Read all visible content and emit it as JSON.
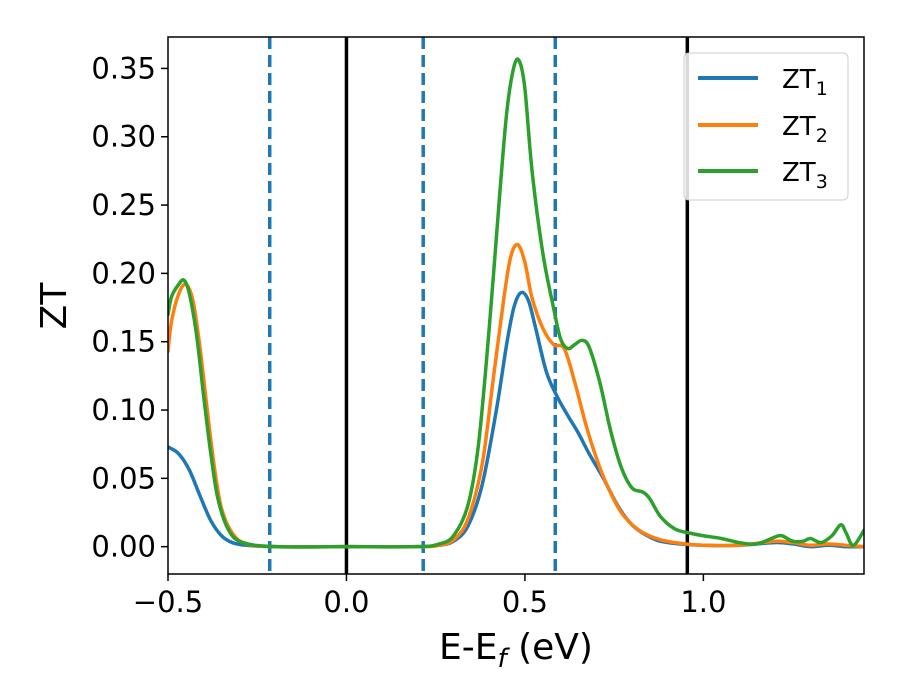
{
  "chart_data": {
    "type": "line",
    "title": "",
    "xlabel": "E-E",
    "xlabel_sub": "f",
    "xlabel_suffix": " (eV)",
    "ylabel": "ZT",
    "xlim": [
      -0.5,
      1.45
    ],
    "ylim": [
      -0.02,
      0.373
    ],
    "xticks": [
      -0.5,
      0.0,
      0.5,
      1.0
    ],
    "xtick_labels": [
      "−0.5",
      "0.0",
      "0.5",
      "1.0"
    ],
    "yticks": [
      0.0,
      0.05,
      0.1,
      0.15,
      0.2,
      0.25,
      0.3,
      0.35
    ],
    "ytick_labels": [
      "0.00",
      "0.05",
      "0.10",
      "0.15",
      "0.20",
      "0.25",
      "0.30",
      "0.35"
    ],
    "grid": false,
    "legend_position": "top-right",
    "vlines": [
      {
        "x": -0.215,
        "style": "dashed",
        "color": "#1f77b4"
      },
      {
        "x": 0.0,
        "style": "solid",
        "color": "#000000"
      },
      {
        "x": 0.215,
        "style": "dashed",
        "color": "#1f77b4"
      },
      {
        "x": 0.585,
        "style": "dashed",
        "color": "#1f77b4"
      },
      {
        "x": 0.955,
        "style": "solid",
        "color": "#000000"
      }
    ],
    "series": [
      {
        "name": "ZT1",
        "label_main": "ZT",
        "label_sub": "1",
        "color": "#1f77b4",
        "points": [
          [
            -0.5,
            0.073
          ],
          [
            -0.47,
            0.068
          ],
          [
            -0.44,
            0.056
          ],
          [
            -0.41,
            0.037
          ],
          [
            -0.38,
            0.019
          ],
          [
            -0.35,
            0.008
          ],
          [
            -0.32,
            0.003
          ],
          [
            -0.28,
            0.001
          ],
          [
            -0.2,
            0.0
          ],
          [
            0.0,
            0.0
          ],
          [
            0.2,
            0.0
          ],
          [
            0.26,
            0.001
          ],
          [
            0.3,
            0.004
          ],
          [
            0.34,
            0.015
          ],
          [
            0.38,
            0.045
          ],
          [
            0.42,
            0.1
          ],
          [
            0.45,
            0.15
          ],
          [
            0.47,
            0.176
          ],
          [
            0.49,
            0.186
          ],
          [
            0.51,
            0.18
          ],
          [
            0.53,
            0.16
          ],
          [
            0.56,
            0.128
          ],
          [
            0.59,
            0.11
          ],
          [
            0.62,
            0.096
          ],
          [
            0.65,
            0.083
          ],
          [
            0.68,
            0.068
          ],
          [
            0.72,
            0.05
          ],
          [
            0.76,
            0.03
          ],
          [
            0.8,
            0.016
          ],
          [
            0.85,
            0.007
          ],
          [
            0.9,
            0.003
          ],
          [
            1.0,
            0.001
          ],
          [
            1.1,
            0.001
          ],
          [
            1.2,
            0.003
          ],
          [
            1.25,
            0.002
          ],
          [
            1.3,
            0.0
          ],
          [
            1.35,
            0.001
          ],
          [
            1.4,
            0.0
          ],
          [
            1.45,
            0.0
          ]
        ]
      },
      {
        "name": "ZT2",
        "label_main": "ZT",
        "label_sub": "2",
        "color": "#ff7f0e",
        "points": [
          [
            -0.5,
            0.143
          ],
          [
            -0.49,
            0.165
          ],
          [
            -0.47,
            0.185
          ],
          [
            -0.45,
            0.192
          ],
          [
            -0.43,
            0.18
          ],
          [
            -0.41,
            0.145
          ],
          [
            -0.39,
            0.1
          ],
          [
            -0.37,
            0.058
          ],
          [
            -0.35,
            0.028
          ],
          [
            -0.32,
            0.01
          ],
          [
            -0.28,
            0.002
          ],
          [
            -0.2,
            0.0
          ],
          [
            0.0,
            0.0
          ],
          [
            0.2,
            0.0
          ],
          [
            0.26,
            0.001
          ],
          [
            0.3,
            0.005
          ],
          [
            0.34,
            0.02
          ],
          [
            0.38,
            0.06
          ],
          [
            0.41,
            0.12
          ],
          [
            0.44,
            0.18
          ],
          [
            0.46,
            0.212
          ],
          [
            0.48,
            0.221
          ],
          [
            0.5,
            0.208
          ],
          [
            0.52,
            0.182
          ],
          [
            0.55,
            0.16
          ],
          [
            0.58,
            0.148
          ],
          [
            0.61,
            0.145
          ],
          [
            0.64,
            0.12
          ],
          [
            0.67,
            0.09
          ],
          [
            0.7,
            0.065
          ],
          [
            0.73,
            0.045
          ],
          [
            0.77,
            0.025
          ],
          [
            0.82,
            0.012
          ],
          [
            0.88,
            0.005
          ],
          [
            0.95,
            0.002
          ],
          [
            1.0,
            0.001
          ],
          [
            1.1,
            0.001
          ],
          [
            1.2,
            0.004
          ],
          [
            1.25,
            0.003
          ],
          [
            1.3,
            0.001
          ],
          [
            1.35,
            0.002
          ],
          [
            1.4,
            0.001
          ],
          [
            1.45,
            0.0
          ]
        ]
      },
      {
        "name": "ZT3",
        "label_main": "ZT",
        "label_sub": "3",
        "color": "#2ca02c",
        "points": [
          [
            -0.5,
            0.17
          ],
          [
            -0.49,
            0.183
          ],
          [
            -0.47,
            0.192
          ],
          [
            -0.455,
            0.195
          ],
          [
            -0.44,
            0.185
          ],
          [
            -0.42,
            0.155
          ],
          [
            -0.4,
            0.11
          ],
          [
            -0.38,
            0.068
          ],
          [
            -0.36,
            0.035
          ],
          [
            -0.33,
            0.012
          ],
          [
            -0.29,
            0.003
          ],
          [
            -0.2,
            0.0
          ],
          [
            0.0,
            0.0
          ],
          [
            0.2,
            0.0
          ],
          [
            0.26,
            0.002
          ],
          [
            0.3,
            0.008
          ],
          [
            0.34,
            0.03
          ],
          [
            0.37,
            0.075
          ],
          [
            0.4,
            0.16
          ],
          [
            0.43,
            0.26
          ],
          [
            0.45,
            0.32
          ],
          [
            0.47,
            0.352
          ],
          [
            0.485,
            0.355
          ],
          [
            0.5,
            0.335
          ],
          [
            0.52,
            0.275
          ],
          [
            0.55,
            0.215
          ],
          [
            0.58,
            0.175
          ],
          [
            0.6,
            0.152
          ],
          [
            0.62,
            0.145
          ],
          [
            0.64,
            0.148
          ],
          [
            0.66,
            0.151
          ],
          [
            0.68,
            0.146
          ],
          [
            0.71,
            0.12
          ],
          [
            0.74,
            0.085
          ],
          [
            0.77,
            0.058
          ],
          [
            0.8,
            0.043
          ],
          [
            0.83,
            0.04
          ],
          [
            0.85,
            0.035
          ],
          [
            0.88,
            0.022
          ],
          [
            0.92,
            0.013
          ],
          [
            0.96,
            0.01
          ],
          [
            1.0,
            0.008
          ],
          [
            1.05,
            0.006
          ],
          [
            1.1,
            0.003
          ],
          [
            1.15,
            0.002
          ],
          [
            1.2,
            0.007
          ],
          [
            1.22,
            0.008
          ],
          [
            1.25,
            0.004
          ],
          [
            1.28,
            0.004
          ],
          [
            1.3,
            0.006
          ],
          [
            1.33,
            0.003
          ],
          [
            1.36,
            0.008
          ],
          [
            1.385,
            0.016
          ],
          [
            1.4,
            0.01
          ],
          [
            1.42,
            0.001
          ],
          [
            1.45,
            0.012
          ]
        ]
      }
    ]
  }
}
